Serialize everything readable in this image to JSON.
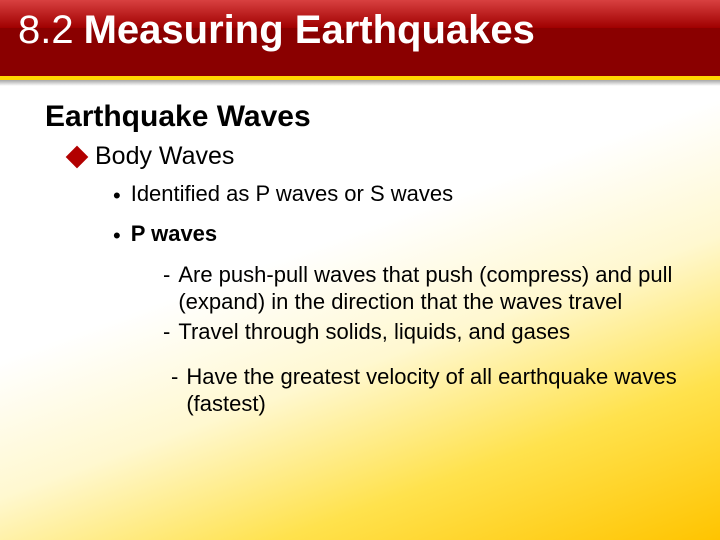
{
  "colors": {
    "header_bg": "#8a0000",
    "header_highlight_top": "#d84040",
    "header_highlight_bottom": "#a00000",
    "accent_border": "#ffd700",
    "background_top": "#ffffff",
    "background_mid": "#fff8d0",
    "background_low": "#ffe24d",
    "background_bottom": "#ffc400",
    "bullet_diamond": "#b20000",
    "text": "#000000",
    "title_text": "#ffffff"
  },
  "typography": {
    "title_fontsize": 40,
    "subtitle_fontsize": 30,
    "l1_fontsize": 25,
    "l2_fontsize": 22,
    "l3_fontsize": 22,
    "font_family": "Arial"
  },
  "header": {
    "section_number": "8.2",
    "title": "Measuring Earthquakes"
  },
  "content": {
    "subtitle": "Earthquake Waves",
    "l1": "Body Waves",
    "l2_items": [
      {
        "text": "Identified as P waves or S waves",
        "bold": false
      },
      {
        "text": "P waves",
        "bold": true
      }
    ],
    "l3_items": [
      "Are push-pull waves that push (compress) and pull (expand) in the direction that the waves travel",
      "Travel through solids, liquids, and gases"
    ],
    "l3_extra": " Have the greatest velocity of all earthquake waves (fastest)"
  }
}
